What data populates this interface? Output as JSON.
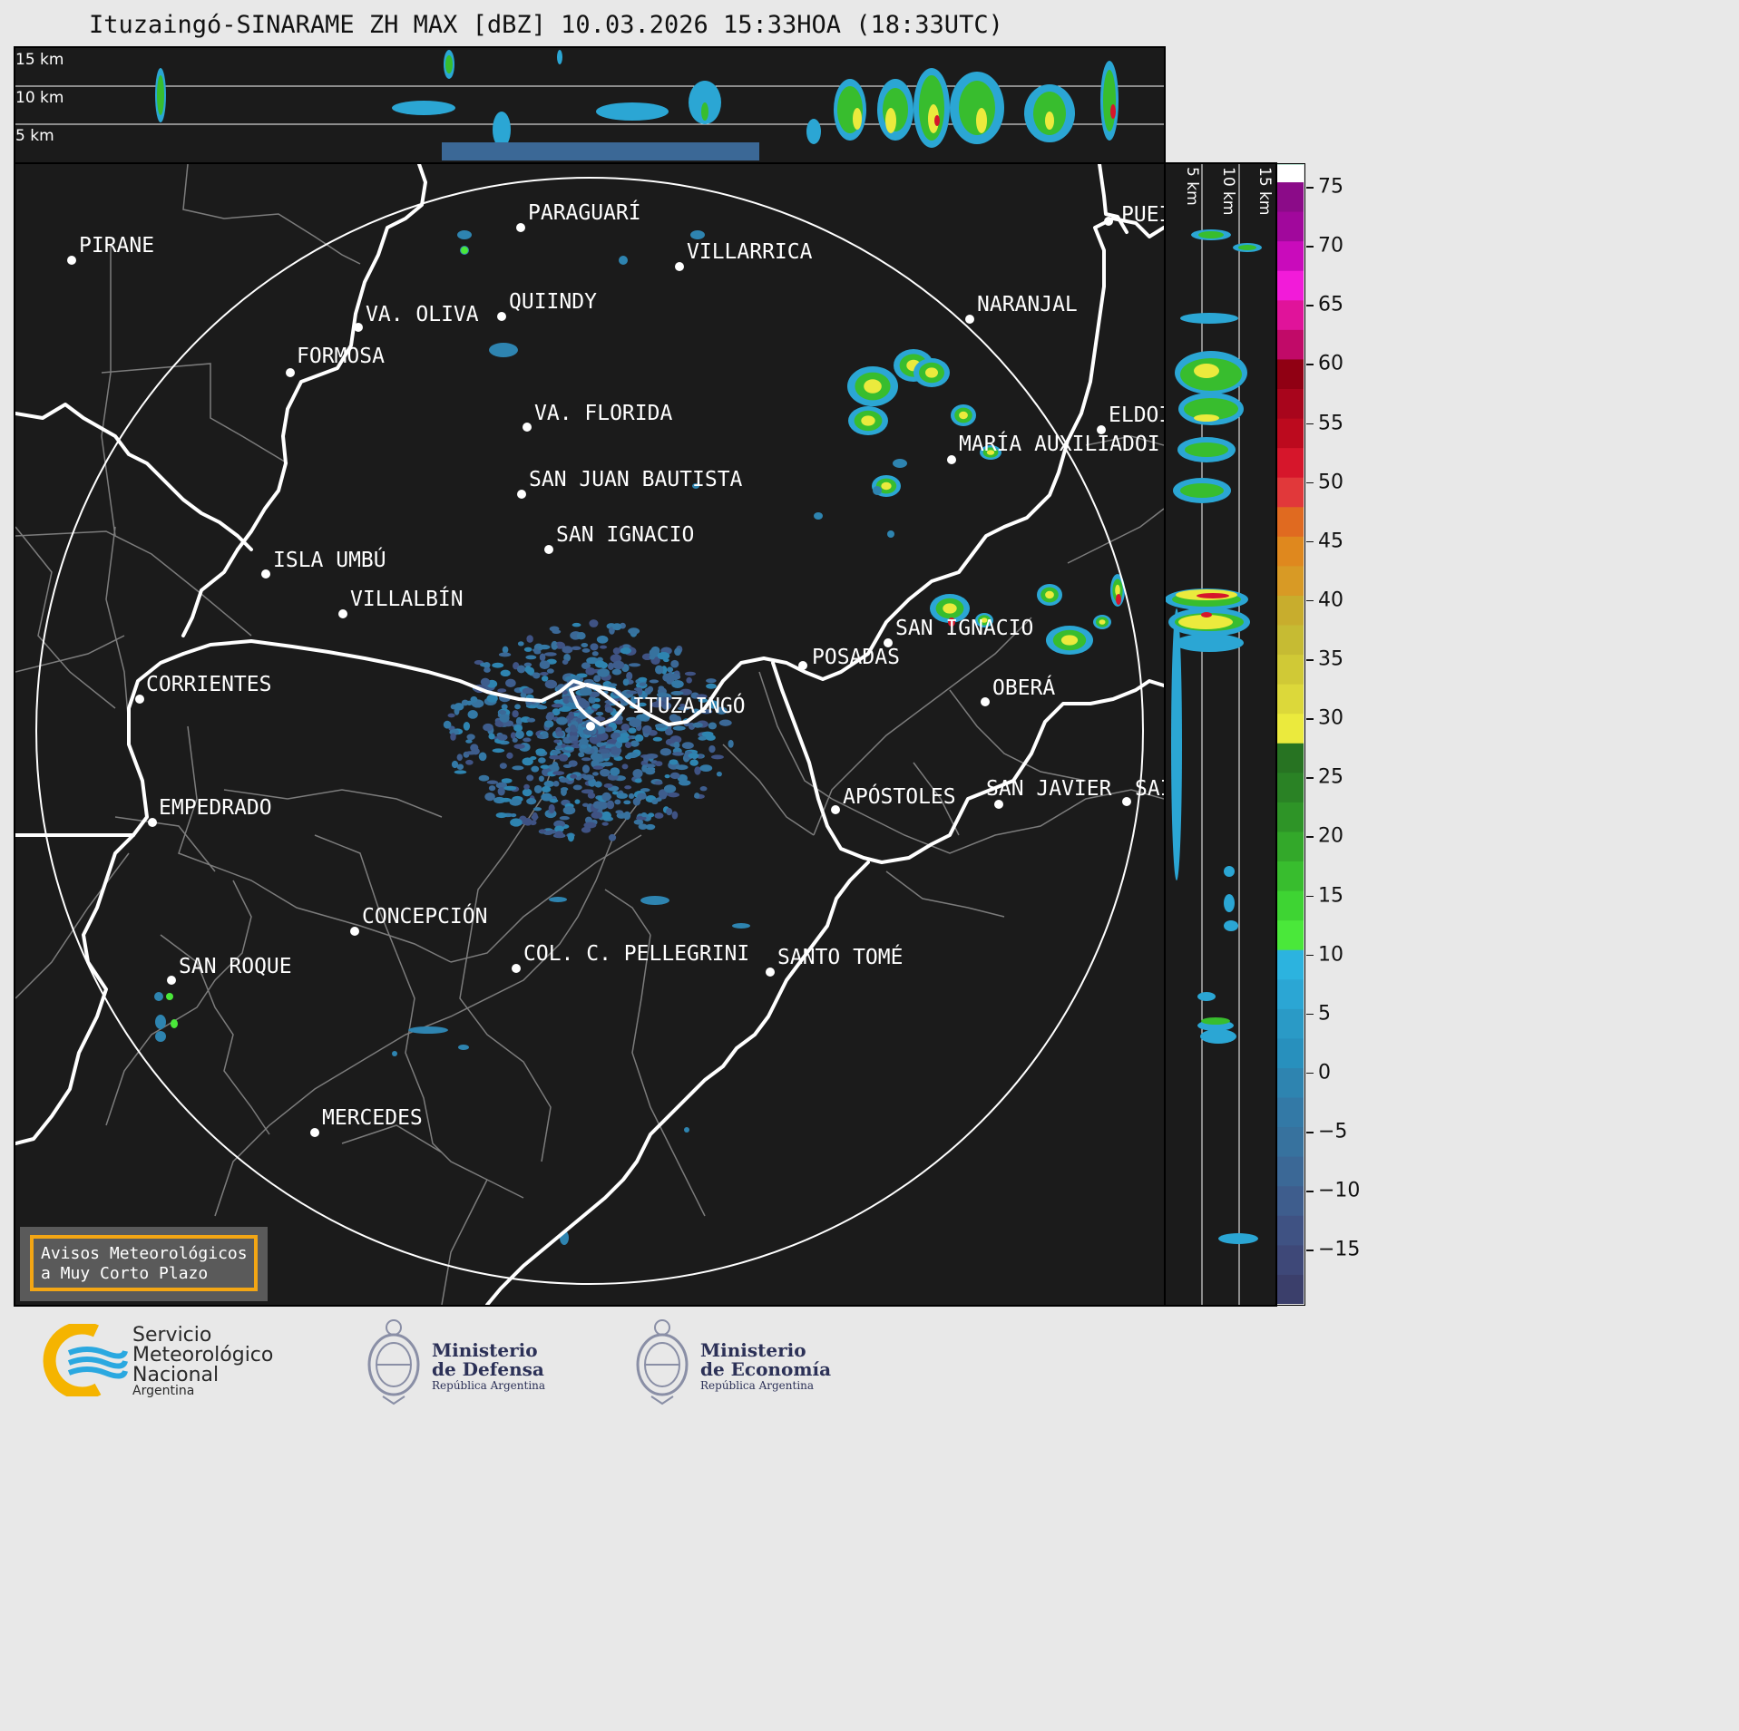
{
  "title": "Ituzaingó-SINARAME ZH MAX [dBZ] 10.03.2026 15:33HOA (18:33UTC)",
  "height_labels": [
    "15 km",
    "10 km",
    "5 km"
  ],
  "cities": [
    {
      "name": "PIRANE"
    },
    {
      "name": "PARAGUARÍ"
    },
    {
      "name": "VILLARRICA"
    },
    {
      "name": "QUIINDY"
    },
    {
      "name": "VA. OLIVA"
    },
    {
      "name": "FORMOSA"
    },
    {
      "name": "NARANJAL"
    },
    {
      "name": "PUEI"
    },
    {
      "name": "VA. FLORIDA"
    },
    {
      "name": "ELDOI"
    },
    {
      "name": "MARÍA AUXILIADOI"
    },
    {
      "name": "SAN JUAN BAUTISTA"
    },
    {
      "name": "SAN IGNACIO"
    },
    {
      "name": "ISLA UMBÚ"
    },
    {
      "name": "VILLALBÍN"
    },
    {
      "name": "SAN IGNACIO"
    },
    {
      "name": "POSADAS"
    },
    {
      "name": "CORRIENTES"
    },
    {
      "name": "ITUZAINGÓ"
    },
    {
      "name": "OBERÁ"
    },
    {
      "name": "APÓSTOLES"
    },
    {
      "name": "SAN JAVIER"
    },
    {
      "name": "SAI"
    },
    {
      "name": "EMPEDRADO"
    },
    {
      "name": "CONCEPCIÓN"
    },
    {
      "name": "COL. C. PELLEGRINI"
    },
    {
      "name": "SANTO TOMÉ"
    },
    {
      "name": "SAN ROQUE"
    },
    {
      "name": "MERCEDES"
    }
  ],
  "colorbar": {
    "min": -19.5,
    "max": 77,
    "tick_labels": [
      "75",
      "70",
      "65",
      "60",
      "55",
      "50",
      "45",
      "40",
      "35",
      "30",
      "25",
      "20",
      "15",
      "10",
      "5",
      "0",
      "−5",
      "−10",
      "−15"
    ],
    "tick_values": [
      75,
      70,
      65,
      60,
      55,
      50,
      45,
      40,
      35,
      30,
      25,
      20,
      15,
      10,
      5,
      0,
      -5,
      -10,
      -15
    ],
    "colors": [
      "#3b3f6b",
      "#3e4878",
      "#3f5283",
      "#3e5d8d",
      "#3b6896",
      "#37729e",
      "#3379a6",
      "#2e84b0",
      "#2890bd",
      "#2a9ac6",
      "#2ba6d4",
      "#2cb3df",
      "#4ae83a",
      "#3ed433",
      "#38bd2e",
      "#33a82a",
      "#2e9427",
      "#2a8225",
      "#277322",
      "#ebea3d",
      "#dcd83a",
      "#d0c936",
      "#c6bb33",
      "#c8ad2d",
      "#d89a25",
      "#df881e",
      "#e06a20",
      "#e1383a",
      "#d6162b",
      "#bc0a1e",
      "#a8051c",
      "#900013",
      "#c10a68",
      "#e0139a",
      "#f21bd9",
      "#c90bbb",
      "#a1089c",
      "#8b0b88",
      "#ffffff",
      "#e6f8ef",
      "#cdeedf",
      "#b6e7d3",
      "#a3dfc7",
      "#94dcc1",
      "#8cd8bb",
      "#84d5b6",
      "#7dd2b2"
    ],
    "bound_step": 2.5
  },
  "notice": {
    "line1": "Avisos Meteorológicos",
    "line2": "a Muy Corto Plazo"
  },
  "logos": {
    "smn": {
      "line1": "Servicio",
      "line2": "Meteorológico",
      "line3": "Nacional",
      "line4": "Argentina"
    },
    "defensa": {
      "line1": "Ministerio",
      "line2": "de Defensa",
      "line3": "República Argentina"
    },
    "economia": {
      "line1": "Ministerio",
      "line2": "de Economía",
      "line3": "República Argentina"
    }
  }
}
